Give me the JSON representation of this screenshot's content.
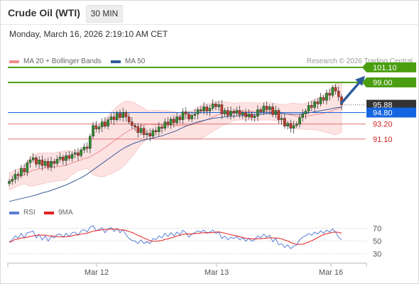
{
  "header": {
    "title": "Crude Oil (WTI)",
    "timeframe": "30 MIN",
    "datetime": "Monday, March 16, 2026 2:19:10 AM CET"
  },
  "legend": {
    "main": [
      {
        "label": "MA 20 + Bollinger Bands",
        "color": "#f08c8c"
      },
      {
        "label": "MA 50",
        "color": "#2e5c9a"
      }
    ],
    "rsi": [
      {
        "label": "RSI",
        "color": "#5a7fd6"
      },
      {
        "label": "9MA",
        "color": "#e02020"
      }
    ]
  },
  "copyright": "Research © 2026 Trading Central",
  "colors": {
    "candle_up": "#2e8b2e",
    "candle_down": "#c0392b",
    "resistance": "#4a9e10",
    "support": "#e07070",
    "current": "#1565e0",
    "ma50": "#3b5c95",
    "bollinger_fill": "#fde2e2",
    "arrow": "#2e5c9a"
  },
  "chart_data": {
    "type": "candlestick",
    "x_tick_labels": [
      "Mar 12",
      "Mar 13",
      "Mar 16"
    ],
    "price_ylim": [
      86.5,
      102.5
    ],
    "levels": [
      {
        "price": 101.1,
        "label": "101.10",
        "kind": "resistance"
      },
      {
        "price": 99.0,
        "label": "99.00",
        "kind": "resistance"
      },
      {
        "price": 95.88,
        "label": "95.88",
        "kind": "last"
      },
      {
        "price": 94.8,
        "label": "94.80",
        "kind": "pivot"
      },
      {
        "price": 93.2,
        "label": "93.20",
        "kind": "support"
      },
      {
        "price": 91.1,
        "label": "91.10",
        "kind": "support"
      }
    ],
    "close": [
      85.2,
      85.5,
      86.2,
      86.0,
      87.0,
      86.5,
      87.8,
      88.2,
      88.5,
      87.6,
      88.2,
      87.4,
      88.0,
      87.2,
      88.0,
      87.7,
      88.3,
      88.6,
      88.1,
      88.8,
      88.4,
      89.0,
      89.2,
      88.8,
      89.6,
      90.0,
      89.8,
      91.5,
      93.0,
      92.5,
      92.8,
      93.5,
      92.9,
      93.8,
      94.2,
      93.8,
      94.7,
      94.1,
      94.8,
      94.2,
      93.5,
      93.0,
      92.8,
      92.0,
      92.6,
      91.7,
      91.9,
      91.5,
      92.3,
      92.1,
      92.8,
      92.6,
      93.5,
      93.1,
      93.9,
      93.4,
      94.2,
      93.8,
      94.9,
      94.6,
      93.9,
      94.4,
      94.6,
      95.2,
      95.0,
      95.6,
      95.0,
      95.4,
      96.0,
      95.6,
      95.9,
      94.6,
      95.1,
      94.4,
      95.0,
      94.7,
      95.1,
      94.5,
      94.8,
      94.2,
      94.6,
      94.1,
      94.3,
      95.2,
      94.9,
      95.7,
      95.2,
      95.6,
      94.5,
      95.1,
      93.8,
      94.0,
      92.9,
      93.3,
      92.6,
      93.0,
      93.2,
      94.1,
      94.6,
      95.0,
      95.8,
      95.5,
      96.3,
      96.0,
      96.9,
      96.5,
      97.5,
      97.2,
      98.3,
      97.8,
      97.0,
      95.88
    ],
    "ma50": [
      82.4,
      82.5,
      82.6,
      82.7,
      82.8,
      82.9,
      83.0,
      83.1,
      83.2,
      83.3,
      83.45,
      83.6,
      83.7,
      83.8,
      83.95,
      84.1,
      84.25,
      84.4,
      84.55,
      84.7,
      84.9,
      85.1,
      85.3,
      85.5,
      85.7,
      85.95,
      86.2,
      86.5,
      86.8,
      87.1,
      87.4,
      87.7,
      88.0,
      88.3,
      88.6,
      88.9,
      89.2,
      89.5,
      89.75,
      90.0,
      90.2,
      90.4,
      90.55,
      90.7,
      90.85,
      90.95,
      91.05,
      91.15,
      91.25,
      91.35,
      91.45,
      91.55,
      91.7,
      91.85,
      92.0,
      92.15,
      92.3,
      92.5,
      92.7,
      92.9,
      93.05,
      93.2,
      93.35,
      93.5,
      93.6,
      93.7,
      93.8,
      93.9,
      94.0,
      94.05,
      94.1,
      94.15,
      94.2,
      94.25,
      94.28,
      94.3,
      94.33,
      94.35,
      94.38,
      94.4,
      94.42,
      94.44,
      94.46,
      94.5,
      94.55,
      94.6,
      94.63,
      94.66,
      94.68,
      94.69,
      94.68,
      94.66,
      94.62,
      94.6,
      94.58,
      94.56,
      94.56,
      94.58,
      94.62,
      94.68,
      94.75,
      94.82,
      94.9,
      94.98,
      95.05,
      95.12,
      95.2,
      95.28,
      95.37,
      95.45,
      95.52,
      95.58
    ],
    "rsi": [
      48,
      52,
      58,
      55,
      62,
      55,
      63,
      64,
      66,
      55,
      60,
      52,
      58,
      50,
      57,
      55,
      60,
      61,
      56,
      62,
      57,
      63,
      64,
      59,
      66,
      68,
      64,
      72,
      74,
      66,
      68,
      71,
      63,
      69,
      71,
      65,
      70,
      63,
      68,
      60,
      54,
      51,
      50,
      46,
      52,
      46,
      49,
      46,
      54,
      52,
      58,
      55,
      62,
      57,
      63,
      58,
      64,
      60,
      67,
      63,
      56,
      61,
      63,
      66,
      64,
      67,
      62,
      64,
      67,
      62,
      64,
      54,
      58,
      52,
      56,
      54,
      57,
      52,
      55,
      50,
      54,
      50,
      52,
      58,
      55,
      61,
      56,
      59,
      49,
      54,
      44,
      46,
      40,
      44,
      38,
      42,
      44,
      52,
      56,
      58,
      62,
      59,
      64,
      61,
      66,
      62,
      67,
      64,
      69,
      64,
      56,
      52
    ],
    "rsi_levels": [
      70,
      50,
      30
    ],
    "rsi_ylim": [
      20,
      80
    ]
  }
}
